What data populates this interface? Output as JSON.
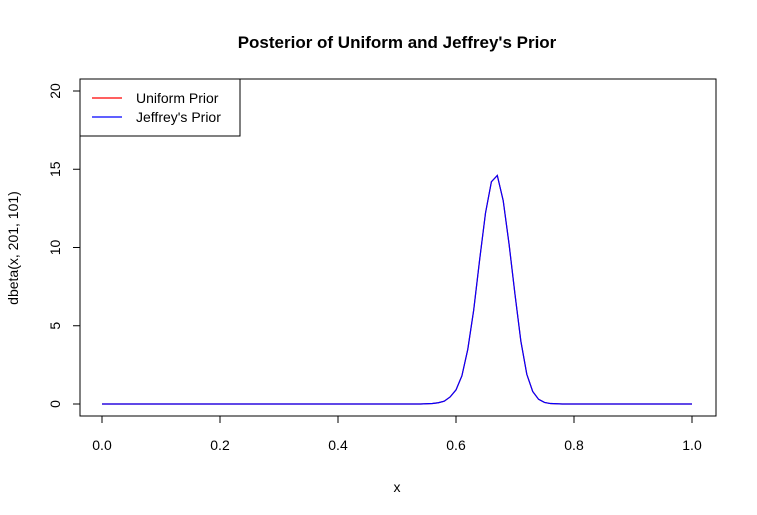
{
  "chart_data": {
    "type": "line",
    "title": "Posterior of Uniform and Jeffrey's Prior",
    "xlabel": "x",
    "ylabel": "dbeta(x, 201, 101)",
    "xlim": [
      0,
      1
    ],
    "ylim": [
      0,
      20
    ],
    "x_ticks": [
      "0.0",
      "0.2",
      "0.4",
      "0.6",
      "0.8",
      "1.0"
    ],
    "y_ticks": [
      "0",
      "5",
      "10",
      "15",
      "20"
    ],
    "grid": false,
    "legend_position": "top-left",
    "series": [
      {
        "name": "Uniform Prior",
        "color": "#ff0000",
        "x": [
          0.0,
          0.54,
          0.56,
          0.57,
          0.58,
          0.59,
          0.6,
          0.61,
          0.62,
          0.63,
          0.64,
          0.65,
          0.66,
          0.67,
          0.68,
          0.69,
          0.7,
          0.71,
          0.72,
          0.73,
          0.74,
          0.75,
          0.76,
          0.78,
          1.0
        ],
        "y": [
          0.0,
          0.0,
          0.03,
          0.08,
          0.18,
          0.45,
          0.9,
          1.8,
          3.5,
          6.0,
          9.2,
          12.2,
          14.2,
          14.6,
          13.0,
          10.2,
          7.0,
          4.0,
          1.9,
          0.8,
          0.3,
          0.1,
          0.03,
          0.0,
          0.0
        ]
      },
      {
        "name": "Jeffrey's Prior",
        "color": "#0000ff",
        "x": [
          0.0,
          0.54,
          0.56,
          0.57,
          0.58,
          0.59,
          0.6,
          0.61,
          0.62,
          0.63,
          0.64,
          0.65,
          0.66,
          0.67,
          0.68,
          0.69,
          0.7,
          0.71,
          0.72,
          0.73,
          0.74,
          0.75,
          0.76,
          0.78,
          1.0
        ],
        "y": [
          0.0,
          0.0,
          0.03,
          0.08,
          0.18,
          0.45,
          0.9,
          1.8,
          3.5,
          6.0,
          9.2,
          12.2,
          14.2,
          14.6,
          13.0,
          10.2,
          7.0,
          4.0,
          1.9,
          0.8,
          0.3,
          0.1,
          0.03,
          0.0,
          0.0
        ]
      }
    ]
  }
}
